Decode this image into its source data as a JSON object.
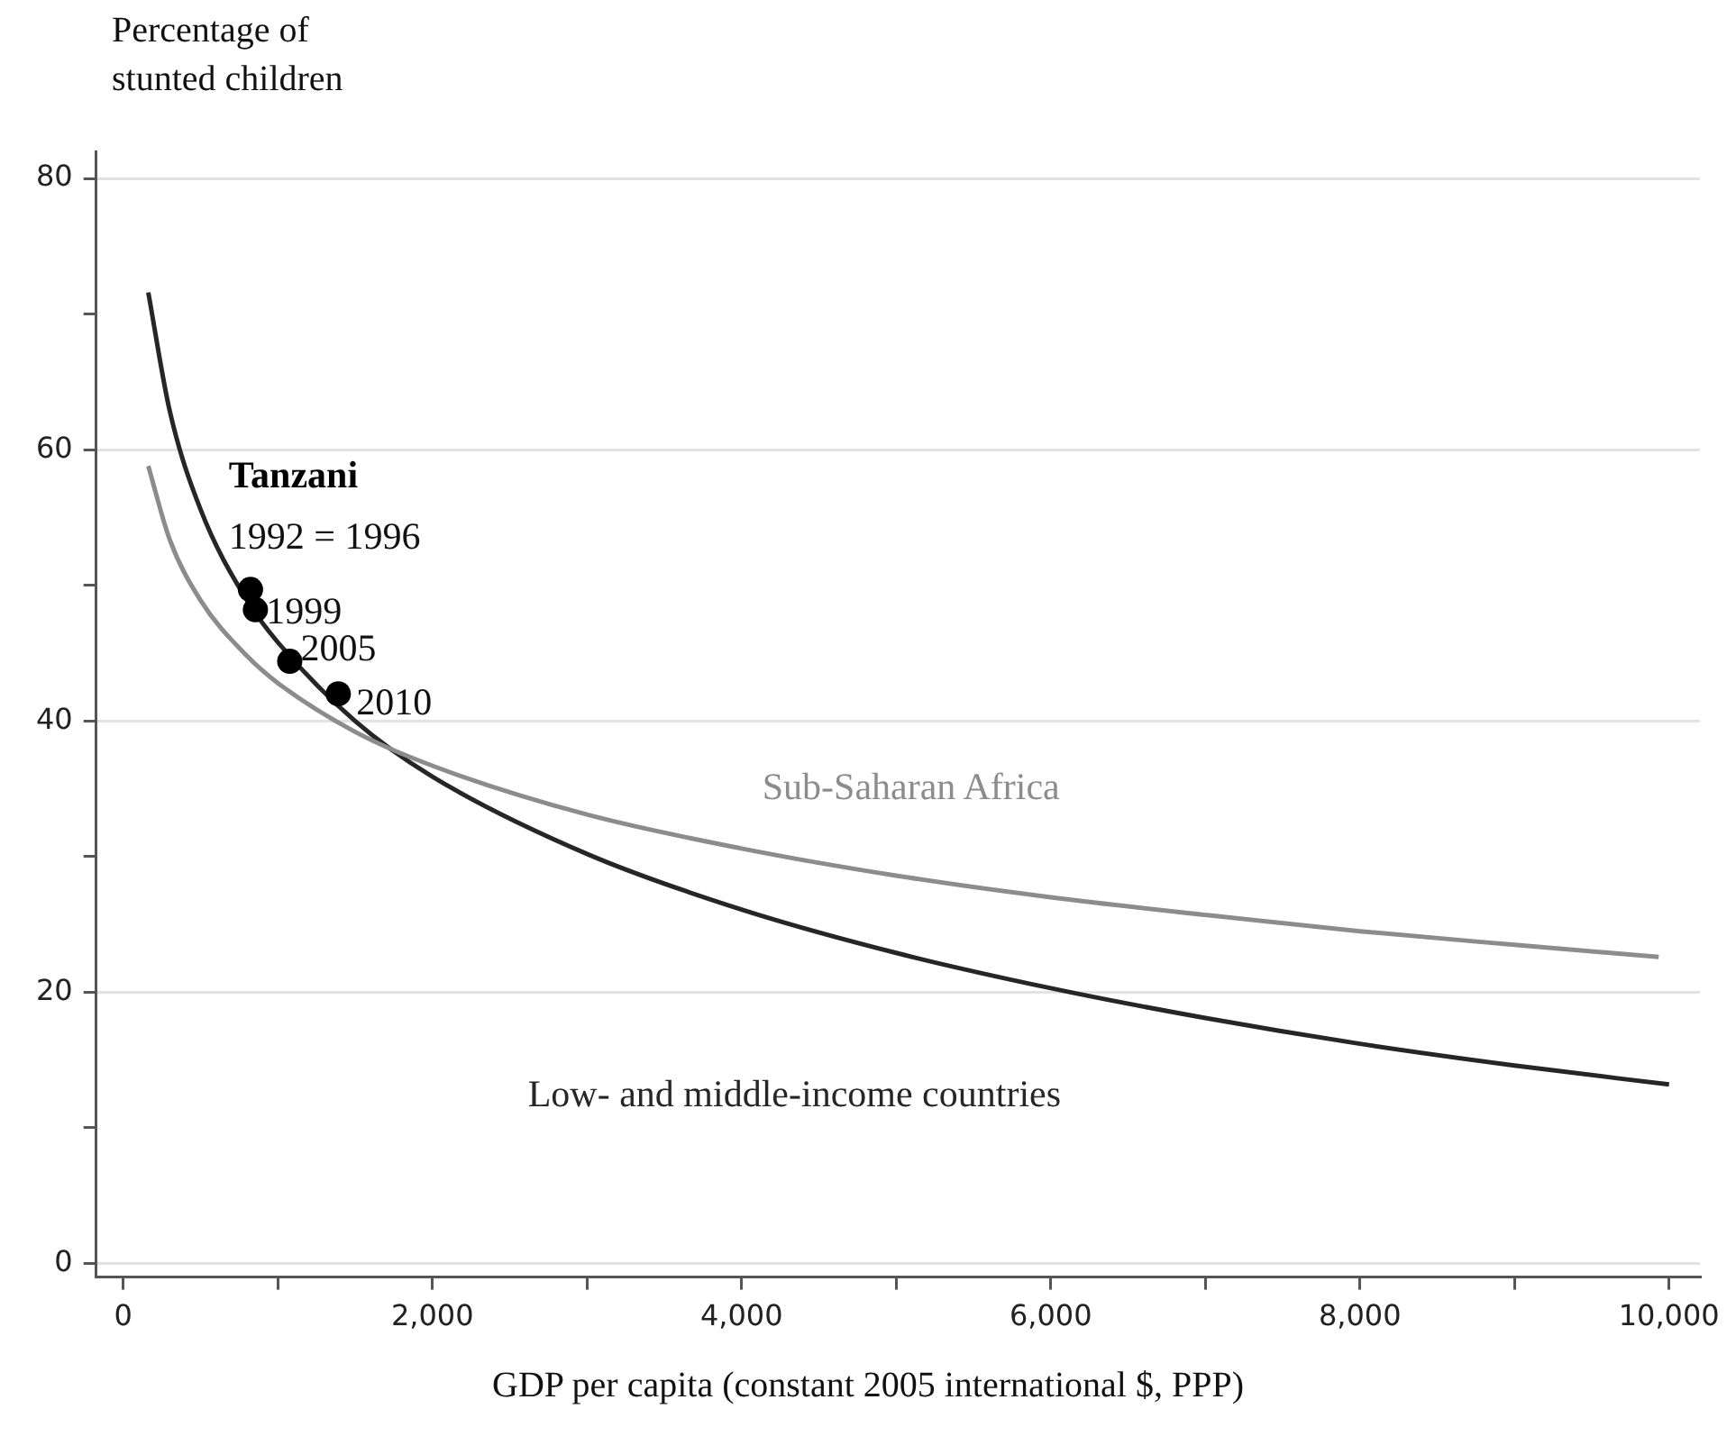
{
  "chart_data": {
    "type": "line",
    "ylabel": "Percentage of stunted children",
    "xlabel": "GDP per capita (constant 2005 international $, PPP)",
    "xlim": [
      -175,
      10200
    ],
    "ylim": [
      -1,
      82
    ],
    "xticks": [
      {
        "value": 0,
        "label": "0"
      },
      {
        "value": 1000,
        "label": null
      },
      {
        "value": 2000,
        "label": "2,000"
      },
      {
        "value": 3000,
        "label": null
      },
      {
        "value": 4000,
        "label": "4,000"
      },
      {
        "value": 5000,
        "label": null
      },
      {
        "value": 6000,
        "label": "6,000"
      },
      {
        "value": 7000,
        "label": null
      },
      {
        "value": 8000,
        "label": "8,000"
      },
      {
        "value": 9000,
        "label": null
      },
      {
        "value": 10000,
        "label": "10,000"
      }
    ],
    "yticks": [
      0,
      {
        "value": 10,
        "label": null
      },
      20,
      {
        "value": 30,
        "label": null
      },
      40,
      {
        "value": 50,
        "label": null
      },
      60,
      {
        "value": 70,
        "label": null
      },
      80
    ],
    "grid": "y",
    "legend": false,
    "marker": "none",
    "line_style": "solid",
    "series": [
      {
        "name": "Sub-Saharan Africa",
        "color": "#8c8c8c",
        "x": [
          162,
          300,
          500,
          800,
          1000,
          1500,
          2000,
          3000,
          4000,
          5000,
          6000,
          7000,
          8000,
          9000,
          9933
        ],
        "values": [
          58.8,
          53.4,
          48.9,
          44.8,
          42.8,
          39.2,
          36.7,
          33.1,
          30.6,
          28.6,
          27.0,
          25.7,
          24.5,
          23.5,
          22.6
        ]
      },
      {
        "name": "Low- and middle-income countries",
        "color": "#262626",
        "x": [
          162,
          300,
          500,
          800,
          1000,
          1500,
          2000,
          3000,
          4000,
          5000,
          6000,
          7000,
          8000,
          9000,
          10000
        ],
        "values": [
          71.6,
          62.9,
          55.6,
          48.9,
          45.8,
          40.0,
          35.9,
          30.2,
          26.1,
          22.9,
          20.3,
          18.1,
          16.2,
          14.6,
          13.2
        ]
      },
      {
        "name": "Tanzani",
        "type": "scatter",
        "marker": "circle",
        "color": "#000000",
        "x": [
          823,
          855,
          1077,
          1391
        ],
        "values": [
          49.7,
          48.2,
          44.4,
          42.0
        ]
      }
    ],
    "annotations": [
      {
        "text": "1992 = 1996",
        "x": 823,
        "y": 49.7
      },
      {
        "text": "1999",
        "x": 855,
        "y": 48.2
      },
      {
        "text": "2005",
        "x": 1077,
        "y": 44.4
      },
      {
        "text": "2010",
        "x": 1391,
        "y": 42.0
      }
    ]
  }
}
